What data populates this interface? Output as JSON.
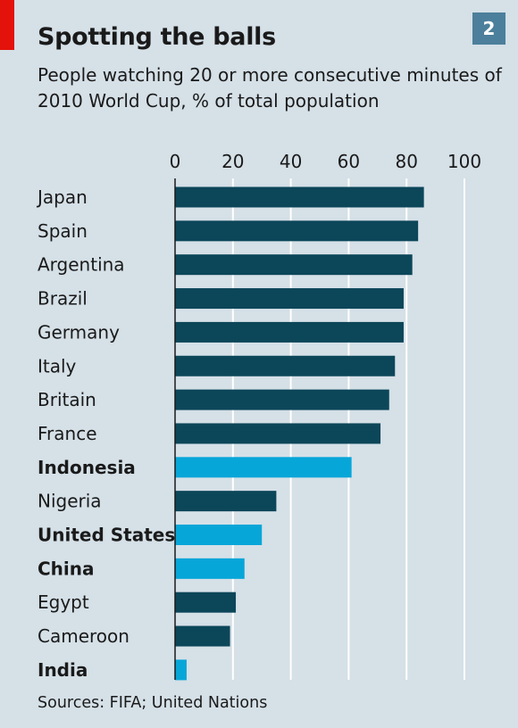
{
  "header": {
    "title": "Spotting the balls",
    "badge": "2",
    "subtitle": "People watching 20 or more consecutive minutes of 2010 World Cup, % of total population"
  },
  "footer": {
    "source": "Sources: FIFA; United Nations"
  },
  "colors": {
    "dark_bar": "#0c4659",
    "highlight_bar": "#07a6d8",
    "gridline": "#ffffff",
    "accent_red": "#e3120b"
  },
  "chart_data": {
    "type": "bar",
    "orientation": "horizontal",
    "title": "Spotting the balls",
    "subtitle": "People watching 20 or more consecutive minutes of 2010 World Cup, % of total population",
    "xlim": [
      0,
      100
    ],
    "xticks": [
      0,
      20,
      40,
      60,
      80,
      100
    ],
    "axis_position": "top",
    "grid": true,
    "categories": [
      "Japan",
      "Spain",
      "Argentina",
      "Brazil",
      "Germany",
      "Italy",
      "Britain",
      "France",
      "Indonesia",
      "Nigeria",
      "United States",
      "China",
      "Egypt",
      "Cameroon",
      "India"
    ],
    "values": [
      86,
      84,
      82,
      79,
      79,
      76,
      74,
      71,
      61,
      35,
      30,
      24,
      21,
      19,
      4
    ],
    "highlighted": [
      "Indonesia",
      "United States",
      "China",
      "India"
    ]
  }
}
